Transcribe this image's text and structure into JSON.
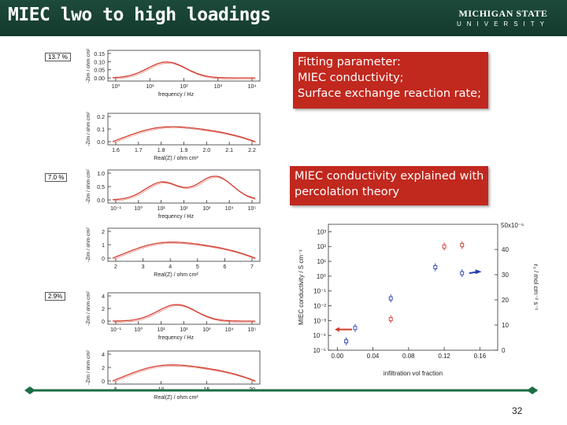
{
  "header": {
    "title": "MIEC lwo to high loadings",
    "logo_line1": "MICHIGAN STATE",
    "logo_line2": "UNIVERSITY"
  },
  "callouts": {
    "fit_lines": [
      "Fitting parameter:",
      "MIEC conductivity;",
      "Surface exchange reaction rate;"
    ],
    "percolation_lines": [
      "MIEC conductivity explained with",
      "percolation theory"
    ]
  },
  "bode_loadings": [
    "13.7 %",
    "7.0 %",
    "2.9%"
  ],
  "plots": {
    "bode_xlabel": "frequency / Hz",
    "nyquist_xlabel": "Real(Z) / ohm cm²",
    "bode_ylabel": "-Zim / ohm cm²",
    "nyquist_ylabel": "-Zim / ohm cm²",
    "p1": {
      "yticks": [
        "0.15",
        "0.10",
        "0.05",
        "0.00"
      ],
      "xticks": [
        "10⁰",
        "10¹",
        "10²",
        "10³",
        "10⁴"
      ]
    },
    "p2": {
      "yticks": [
        "0.2",
        "0.1",
        "0.0"
      ],
      "xticks": [
        "1.6",
        "1.7",
        "1.8",
        "1.9",
        "2.0",
        "2.1",
        "2.2"
      ]
    },
    "p3": {
      "yticks": [
        "1.0",
        "0.5",
        "0.0"
      ],
      "xticks": [
        "10⁻¹",
        "10⁰",
        "10¹",
        "10²",
        "10³",
        "10⁴",
        "10⁵"
      ]
    },
    "p4": {
      "yticks": [
        "2",
        "1",
        "0"
      ],
      "xticks": [
        "2",
        "3",
        "4",
        "5",
        "6",
        "7"
      ]
    },
    "p5": {
      "yticks": [
        "4",
        "2",
        "0"
      ],
      "xticks": [
        "10⁻¹",
        "10⁰",
        "10¹",
        "10²",
        "10³",
        "10⁴",
        "10⁵"
      ]
    },
    "p6": {
      "yticks": [
        "4",
        "2",
        "0"
      ],
      "xticks": [
        "5",
        "10",
        "15",
        "20"
      ]
    }
  },
  "chart_data": {
    "type": "scatter",
    "xlabel": "infiltration vol fraction",
    "ylabel": "MIEC conductivity / S cm⁻¹",
    "ylabel_right": "r₀ / mol cm⁻² s⁻¹",
    "xticks": [
      "0.00",
      "0.04",
      "0.08",
      "0.12",
      "0.16"
    ],
    "yticks_left": [
      "10³",
      "10²",
      "10¹",
      "10⁰",
      "10⁻¹",
      "10⁻²",
      "10⁻³",
      "10⁻⁴",
      "10⁻⁵"
    ],
    "yticks_right": [
      "40",
      "30",
      "20",
      "10",
      "0"
    ],
    "right_axis_scale": "50x10⁻⁶",
    "xlim": [
      -0.01,
      0.18
    ],
    "ylim_log10": [
      -5,
      3.5
    ],
    "ylim_right": [
      0,
      50
    ]
  },
  "footer": {
    "page_number": "32"
  },
  "colors": {
    "header_bg": "#1c4a3b",
    "callout_bg": "#c1281e",
    "curve": "#d23a2e",
    "marker_blue": "#2a3fb0"
  }
}
